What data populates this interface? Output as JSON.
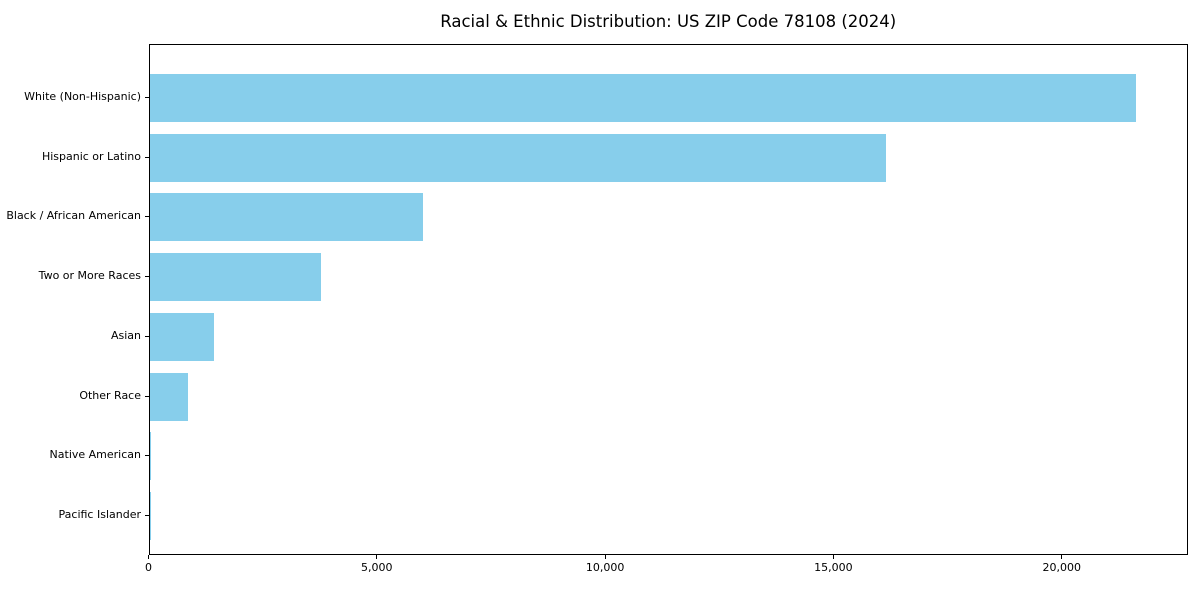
{
  "chart_data": {
    "type": "bar",
    "orientation": "horizontal",
    "title": "Racial & Ethnic Distribution: US ZIP Code 78108 (2024)",
    "categories": [
      "White (Non-Hispanic)",
      "Hispanic or Latino",
      "Black / African American",
      "Two or More Races",
      "Asian",
      "Other Race",
      "Native American",
      "Pacific Islander"
    ],
    "values": [
      21600,
      16130,
      5990,
      3750,
      1410,
      850,
      30,
      15
    ],
    "bar_color": "#87CEEB",
    "xlabel": "",
    "ylabel": "",
    "xlim": [
      0,
      22743
    ],
    "x_ticks": [
      {
        "value": 0,
        "label": "0"
      },
      {
        "value": 5000,
        "label": "5,000"
      },
      {
        "value": 10000,
        "label": "10,000"
      },
      {
        "value": 15000,
        "label": "15,000"
      },
      {
        "value": 20000,
        "label": "20,000"
      }
    ],
    "grid": false,
    "legend": "none",
    "background_color": "#ffffff",
    "axis_color": "#000000"
  }
}
